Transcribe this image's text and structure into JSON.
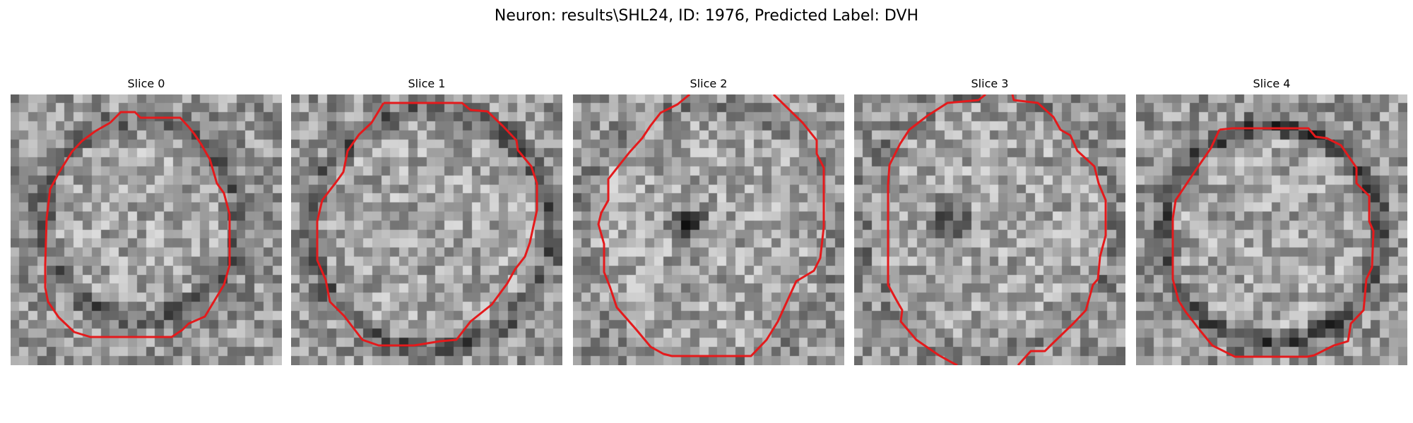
{
  "figure": {
    "title": "Neuron: results\\SHL24, ID: 1976, Predicted Label: DVH"
  },
  "panels": [
    {
      "title": "Slice 0"
    },
    {
      "title": "Slice 1"
    },
    {
      "title": "Slice 2"
    },
    {
      "title": "Slice 3"
    },
    {
      "title": "Slice 4"
    }
  ],
  "colors": {
    "contour": "#e41a1c",
    "background": "#ffffff"
  }
}
